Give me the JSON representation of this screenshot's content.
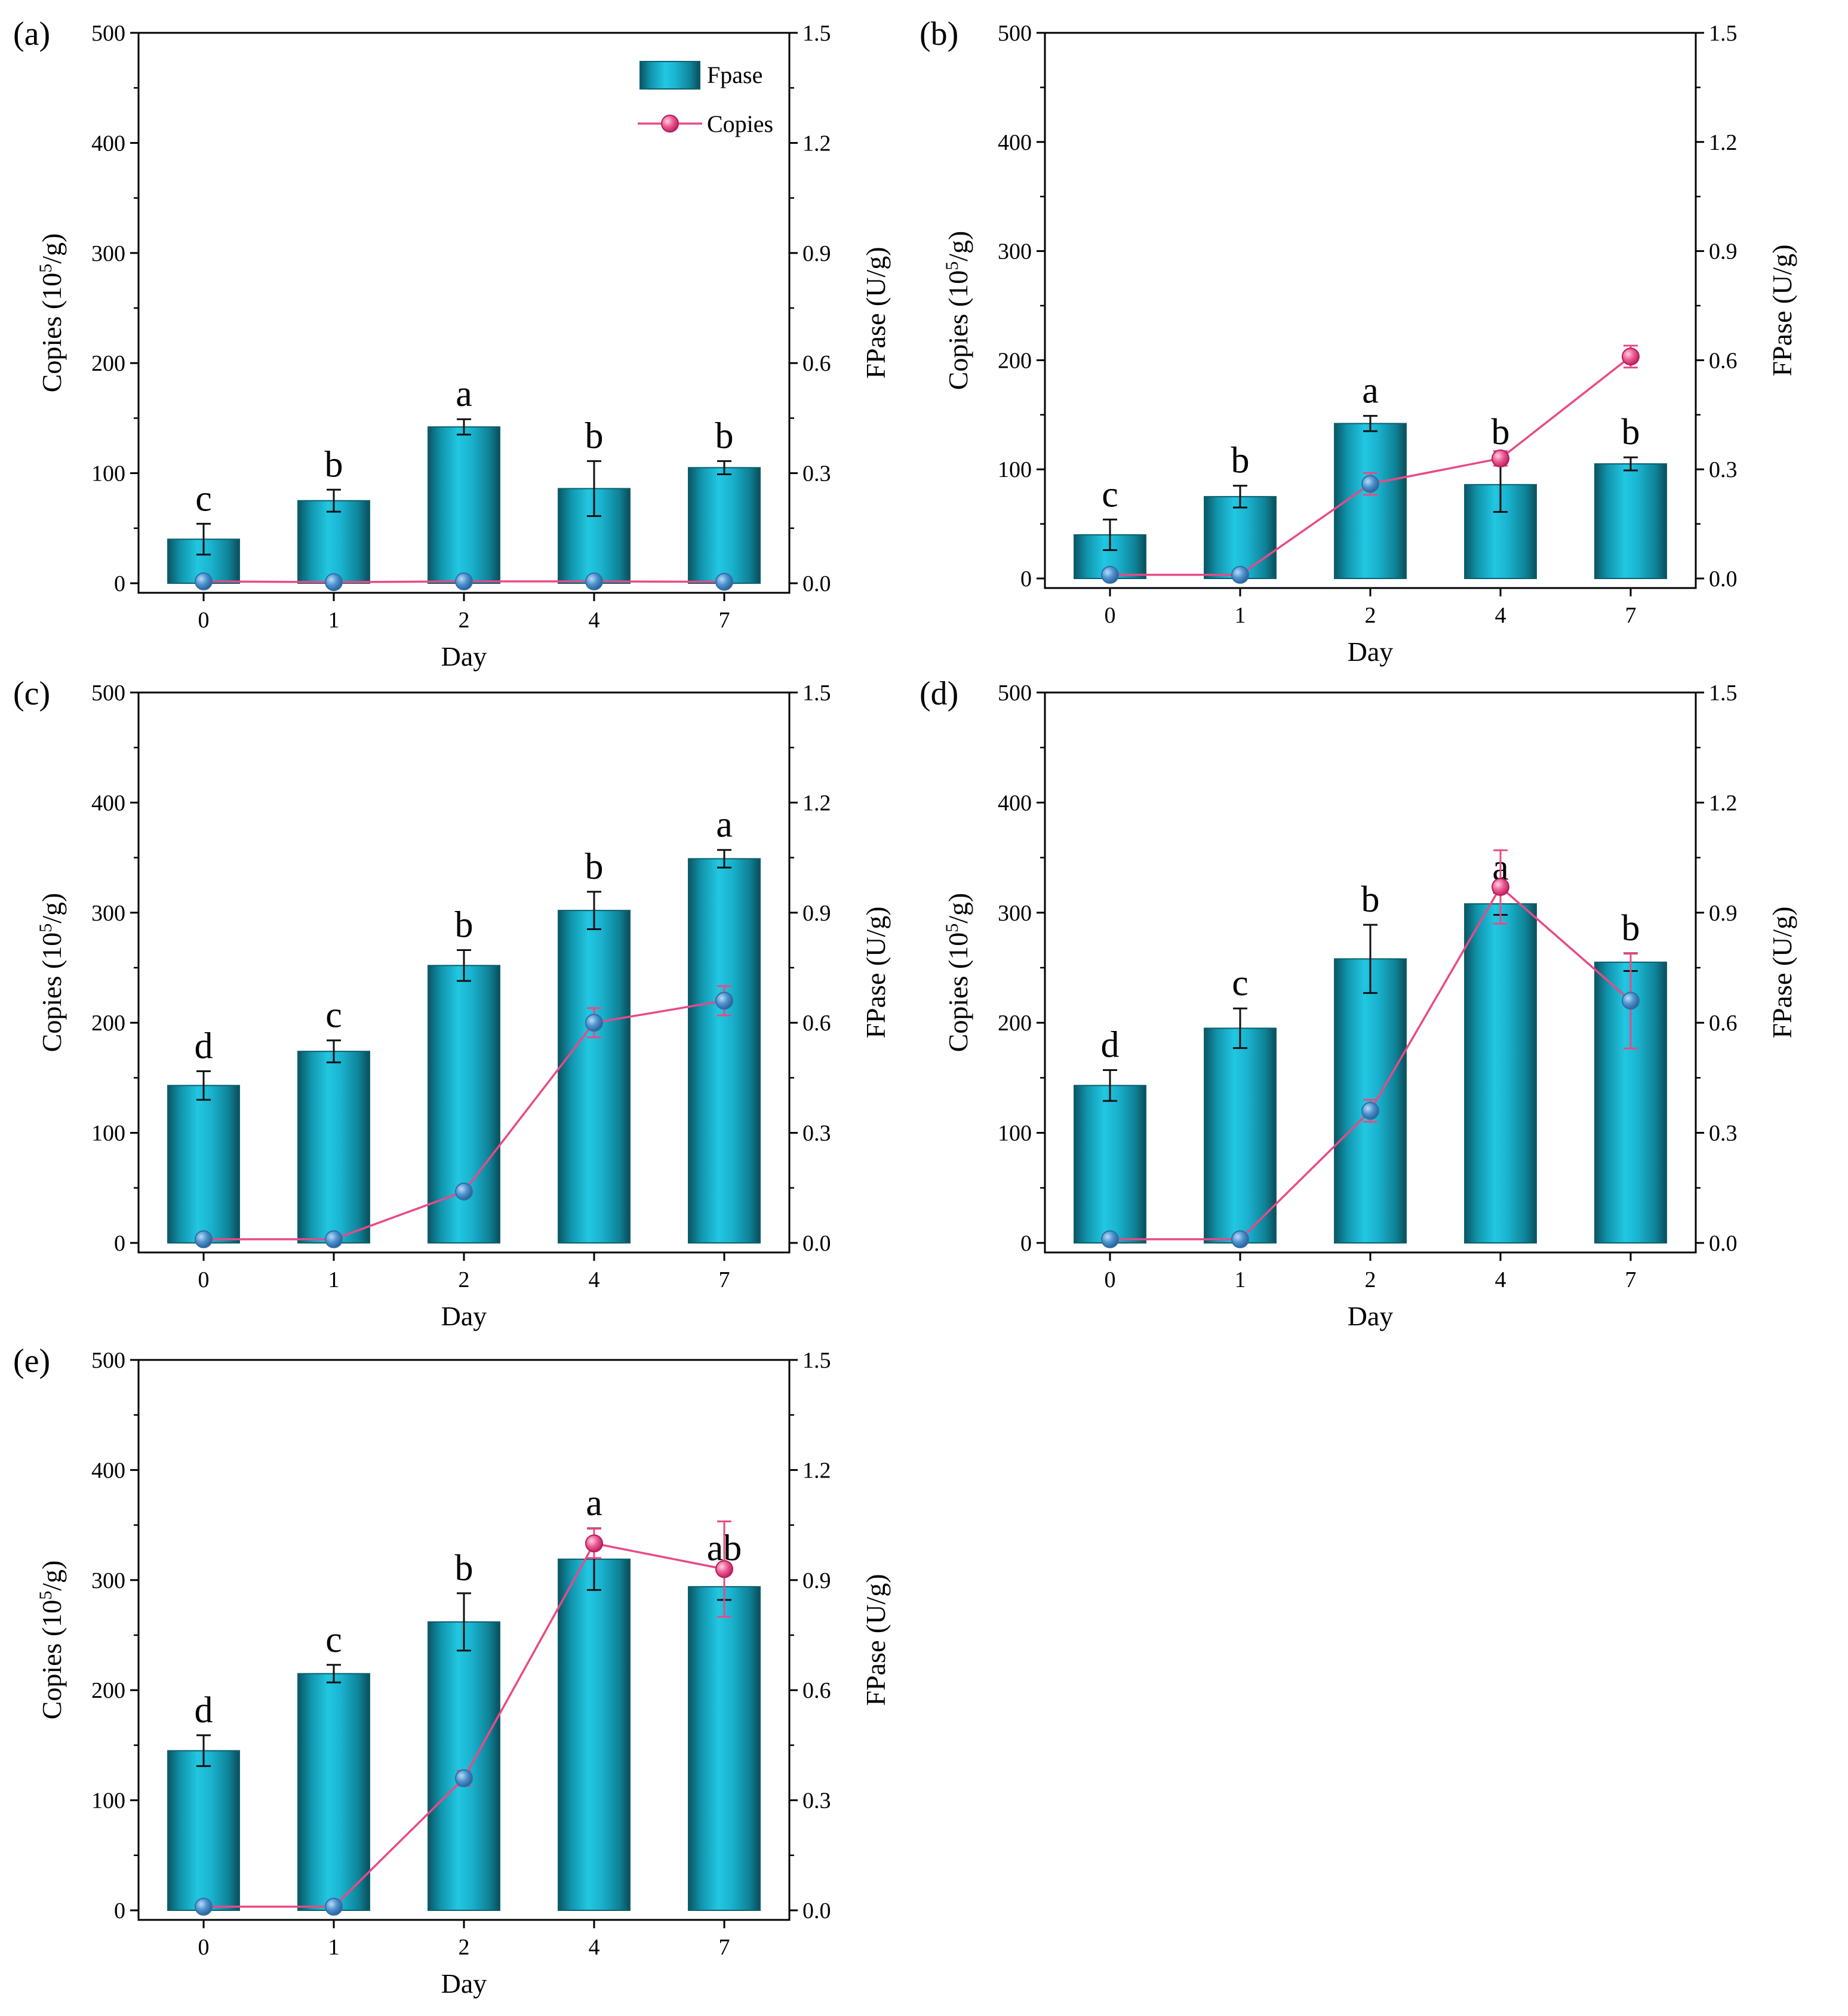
{
  "chart_data": [
    {
      "type": "bar",
      "panel": "(a)",
      "categories": [
        "0",
        "1",
        "2",
        "4",
        "7"
      ],
      "xlabel": "Day",
      "ylabel": "Copies (10^5/g)",
      "ylabel_parts": [
        "Copies (10",
        "5",
        "/g)"
      ],
      "y2label": "FPase (U/g)",
      "ylim": [
        0,
        500
      ],
      "y2lim": [
        0,
        1.5
      ],
      "yticks": [
        "0",
        "100",
        "200",
        "300",
        "400",
        "500"
      ],
      "y2ticks": [
        "0.0",
        "0.3",
        "0.6",
        "0.9",
        "1.2",
        "1.5"
      ],
      "legend": {
        "bar": "Fpase",
        "line": "Copies",
        "position": "top-right"
      },
      "series": [
        {
          "name": "Fpase",
          "kind": "bar",
          "axis": "left",
          "values": [
            40,
            75,
            142,
            86,
            105
          ],
          "errors": [
            14,
            10,
            7,
            25,
            6
          ],
          "letters": [
            "c",
            "b",
            "a",
            "b",
            "b"
          ]
        },
        {
          "name": "Copies",
          "kind": "line",
          "axis": "right",
          "values": [
            0.005,
            0.003,
            0.005,
            0.005,
            0.004
          ],
          "errors": [
            0,
            0,
            0,
            0,
            0
          ]
        }
      ]
    },
    {
      "type": "bar",
      "panel": "(b)",
      "categories": [
        "0",
        "1",
        "2",
        "4",
        "7"
      ],
      "xlabel": "Day",
      "ylabel": "Copies (10^5/g)",
      "ylabel_parts": [
        "Copies (10",
        "5",
        "/g)"
      ],
      "y2label": "FPase (U/g)",
      "ylim": [
        0,
        500
      ],
      "y2lim": [
        0,
        1.5
      ],
      "yticks": [
        "0",
        "100",
        "200",
        "300",
        "400",
        "500"
      ],
      "y2ticks": [
        "0.0",
        "0.3",
        "0.6",
        "0.9",
        "1.2",
        "1.5"
      ],
      "series": [
        {
          "name": "Fpase",
          "kind": "bar",
          "axis": "left",
          "values": [
            40,
            75,
            142,
            86,
            105
          ],
          "errors": [
            14,
            10,
            7,
            25,
            6
          ],
          "letters": [
            "c",
            "b",
            "a",
            "b",
            "b"
          ]
        },
        {
          "name": "Copies",
          "kind": "line",
          "axis": "right",
          "values": [
            0.01,
            0.01,
            0.26,
            0.33,
            0.61
          ],
          "errors": [
            0,
            0,
            0.03,
            0.02,
            0.03
          ]
        }
      ]
    },
    {
      "type": "bar",
      "panel": "(c)",
      "categories": [
        "0",
        "1",
        "2",
        "4",
        "7"
      ],
      "xlabel": "Day",
      "ylabel": "Copies (10^5/g)",
      "ylabel_parts": [
        "Copies (10",
        "5",
        "/g)"
      ],
      "y2label": "FPase (U/g)",
      "ylim": [
        0,
        500
      ],
      "y2lim": [
        0,
        1.5
      ],
      "yticks": [
        "0",
        "100",
        "200",
        "300",
        "400",
        "500"
      ],
      "y2ticks": [
        "0.0",
        "0.3",
        "0.6",
        "0.9",
        "1.2",
        "1.5"
      ],
      "series": [
        {
          "name": "Fpase",
          "kind": "bar",
          "axis": "left",
          "values": [
            143,
            174,
            252,
            302,
            349
          ],
          "errors": [
            13,
            10,
            14,
            17,
            8
          ],
          "letters": [
            "d",
            "c",
            "b",
            "b",
            "a"
          ]
        },
        {
          "name": "Copies",
          "kind": "line",
          "axis": "right",
          "values": [
            0.01,
            0.01,
            0.14,
            0.6,
            0.66
          ],
          "errors": [
            0,
            0,
            0,
            0.04,
            0.04
          ]
        }
      ]
    },
    {
      "type": "bar",
      "panel": "(d)",
      "categories": [
        "0",
        "1",
        "2",
        "4",
        "7"
      ],
      "xlabel": "Day",
      "ylabel": "Copies (10^5/g)",
      "ylabel_parts": [
        "Copies (10",
        "5",
        "/g)"
      ],
      "y2label": "FPase (U/g)",
      "ylim": [
        0,
        500
      ],
      "y2lim": [
        0,
        1.5
      ],
      "yticks": [
        "0",
        "100",
        "200",
        "300",
        "400",
        "500"
      ],
      "y2ticks": [
        "0.0",
        "0.3",
        "0.6",
        "0.9",
        "1.2",
        "1.5"
      ],
      "series": [
        {
          "name": "Fpase",
          "kind": "bar",
          "axis": "left",
          "values": [
            143,
            195,
            258,
            308,
            255
          ],
          "errors": [
            14,
            18,
            31,
            10,
            8
          ],
          "letters": [
            "d",
            "c",
            "b",
            "a",
            "b"
          ]
        },
        {
          "name": "Copies",
          "kind": "line",
          "axis": "right",
          "values": [
            0.01,
            0.01,
            0.36,
            0.97,
            0.66
          ],
          "errors": [
            0,
            0,
            0.03,
            0.1,
            0.13
          ]
        }
      ]
    },
    {
      "type": "bar",
      "panel": "(e)",
      "categories": [
        "0",
        "1",
        "2",
        "4",
        "7"
      ],
      "xlabel": "Day",
      "ylabel": "Copies (10^5/g)",
      "ylabel_parts": [
        "Copies (10",
        "5",
        "/g)"
      ],
      "y2label": "FPase (U/g)",
      "ylim": [
        0,
        500
      ],
      "y2lim": [
        0,
        1.5
      ],
      "yticks": [
        "0",
        "100",
        "200",
        "300",
        "400",
        "500"
      ],
      "y2ticks": [
        "0.0",
        "0.3",
        "0.6",
        "0.9",
        "1.2",
        "1.5"
      ],
      "series": [
        {
          "name": "Fpase",
          "kind": "bar",
          "axis": "left",
          "values": [
            145,
            215,
            262,
            319,
            294
          ],
          "errors": [
            14,
            8,
            26,
            28,
            12
          ],
          "letters": [
            "d",
            "c",
            "b",
            "a",
            "ab"
          ]
        },
        {
          "name": "Copies",
          "kind": "line",
          "axis": "right",
          "values": [
            0.01,
            0.01,
            0.36,
            1.0,
            0.93
          ],
          "errors": [
            0,
            0,
            0.02,
            0.04,
            0.13
          ]
        }
      ]
    }
  ],
  "colors": {
    "bar_fill": "#17b4cf",
    "bar_edge": "#0d5f6c",
    "line": "#e84a86",
    "marker": "#e13e7e",
    "marker_on_bar": "#3f86c4",
    "axis": "#000000"
  }
}
